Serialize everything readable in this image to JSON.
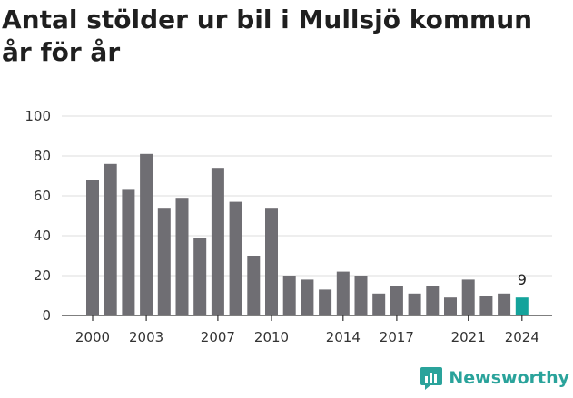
{
  "chart_data": {
    "type": "bar",
    "title": "Antal stölder ur bil i Mullsjö kommun år för år",
    "xlabel": "",
    "ylabel": "",
    "ylim": [
      0,
      100
    ],
    "yticks": [
      0,
      20,
      40,
      60,
      80,
      100
    ],
    "xtick_labels": [
      "2000",
      "2003",
      "2007",
      "2010",
      "2014",
      "2017",
      "2021",
      "2024"
    ],
    "categories": [
      2000,
      2001,
      2002,
      2003,
      2004,
      2005,
      2006,
      2007,
      2008,
      2009,
      2010,
      2011,
      2012,
      2013,
      2014,
      2015,
      2016,
      2017,
      2018,
      2019,
      2020,
      2021,
      2022,
      2023,
      2024
    ],
    "values": [
      68,
      76,
      63,
      81,
      54,
      59,
      39,
      74,
      57,
      30,
      54,
      20,
      18,
      13,
      22,
      20,
      11,
      15,
      11,
      15,
      9,
      18,
      10,
      11,
      9
    ],
    "highlight_label": "9",
    "grid": true,
    "colors": {
      "bar": "#6f6e73",
      "highlight": "#14a39b",
      "grid": "#dddddd"
    }
  },
  "brand": {
    "name": "Newsworthy",
    "icon": "newsworthy-logo-icon"
  }
}
